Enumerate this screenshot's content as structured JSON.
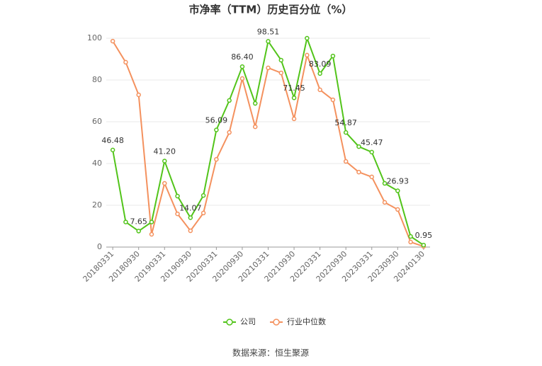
{
  "chart_data": {
    "type": "line",
    "title": "市净率（TTM）历史百分位（%）",
    "source": "数据来源：恒生聚源",
    "categories": [
      "20180331",
      null,
      "20180930",
      null,
      "20190331",
      null,
      "20190930",
      null,
      "20200331",
      null,
      "20200930",
      null,
      "20210331",
      null,
      "20210930",
      null,
      "20220331",
      null,
      "20220930",
      null,
      "20230331",
      null,
      "20230930",
      null,
      "20240130"
    ],
    "series": [
      {
        "name": "公司",
        "color": "#52c41a",
        "values": [
          46.48,
          12,
          7.65,
          12,
          41.2,
          24.4,
          14.07,
          24.7,
          56.09,
          70.2,
          86.4,
          68.8,
          98.51,
          89.5,
          71.45,
          100,
          83.09,
          91.5,
          54.87,
          48.1,
          45.47,
          30.5,
          26.93,
          5.1,
          0.95
        ],
        "value_labels": [
          "46.48",
          null,
          "7.65",
          null,
          "41.20",
          null,
          "14.07",
          null,
          "56.09",
          null,
          "86.40",
          null,
          "98.51",
          null,
          "71.45",
          null,
          "83.09",
          null,
          "54.87",
          null,
          "45.47",
          null,
          "26.93",
          null,
          "0.95"
        ]
      },
      {
        "name": "行业中位数",
        "color": "#f4915e",
        "values": [
          98.6,
          88.5,
          72.9,
          6.1,
          30.5,
          15.9,
          7.8,
          16.3,
          42.0,
          54.9,
          80.7,
          57.6,
          85.8,
          83.4,
          61.4,
          91.9,
          75.3,
          70.5,
          41.0,
          35.9,
          33.6,
          21.4,
          18.0,
          2.4,
          0.3
        ]
      }
    ],
    "ylim": [
      0,
      100
    ],
    "yticks": [
      0,
      20,
      40,
      60,
      80,
      100
    ],
    "grid": true
  }
}
